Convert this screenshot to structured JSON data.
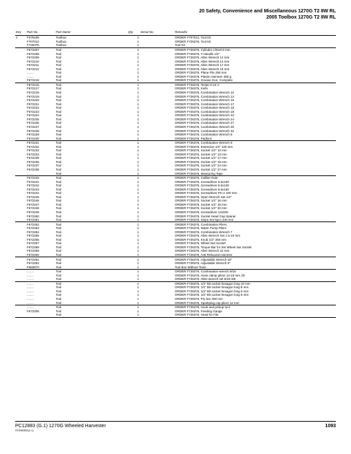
{
  "header": {
    "line1": "20 Safety, Convenience and Miscellaneous 1270G T2 8W RL",
    "line2": "2005 Toolbox 1270G T2 8W RL"
  },
  "columns": {
    "key": "Key",
    "partNo": "Part No.",
    "partName": "Part Name",
    "qty": "Qty.",
    "serialNo": "Serial No.",
    "remarks": "Remarks"
  },
  "rows": [
    {
      "key": "1",
      "pn": "F075435",
      "name": "Toolbox",
      "qty": "1",
      "rem": "ORDER F707012, Tool Kit"
    },
    {
      "pn": "F707012",
      "name": "Toolbox",
      "qty": "1",
      "rem": "ORDER F726376, Tool Kit"
    },
    {
      "pn": "F726376",
      "name": "Toolbox",
      "qty": "1",
      "rem": "Tool Kit",
      "u": true
    },
    {
      "pn": "F672207",
      "name": "Tool",
      "qty": "1",
      "rem": "ORDER F726376, Cylinder Chisel 8 mm"
    },
    {
      "pn": "F672208",
      "name": "Tool",
      "qty": "1",
      "rem": "ORDER F726376, T-Handle 1/2\""
    },
    {
      "pn": "F672209",
      "name": "Tool",
      "qty": "1",
      "rem": "ORDER F726376, Allen Wrench 12 mm"
    },
    {
      "pn": "F672210",
      "name": "Tool",
      "qty": "1",
      "rem": "ORDER F726376, Allen Wrench 14 mm"
    },
    {
      "pn": "F672211",
      "name": "Tool",
      "qty": "1",
      "rem": "ORDER F726376, Allen Wrench 17 mm"
    },
    {
      "pn": "F672212",
      "name": "Tool",
      "qty": "1",
      "rem": "ORDER F726376, Allen Wrench 19 mm"
    },
    {
      "pn": "........",
      "name": "Tool",
      "qty": "1",
      "rem": "ORDER F726376, Plane File 250 mm"
    },
    {
      "pn": "........",
      "name": "Tool",
      "qty": "1",
      "rem": "ORDER F726376, Plastic Hammer 450 g"
    },
    {
      "pn": "F672215",
      "name": "Tool",
      "qty": "1",
      "rem": "ORDER F726376, Grease Gun, Complete",
      "u": true
    },
    {
      "pn": "F672216",
      "name": "Tool",
      "qty": "1",
      "rem": "ORDER F726376, Tester 6-24 V"
    },
    {
      "pn": "F672217",
      "name": "Tool",
      "qty": "1",
      "rem": "ORDER F726376, Knife"
    },
    {
      "pn": "F672218",
      "name": "Tool",
      "qty": "1",
      "rem": "ORDER F726376, Combination Wrench 12"
    },
    {
      "pn": "F672219",
      "name": "Tool",
      "qty": "1",
      "rem": "ORDER F726376, Combination Wrench 13"
    },
    {
      "pn": "F672220",
      "name": "Tool",
      "qty": "1",
      "rem": "ORDER F726376, Combination Wrench 16"
    },
    {
      "pn": "F672221",
      "name": "Tool",
      "qty": "1",
      "rem": "ORDER F726376, Combination Wrench 17"
    },
    {
      "pn": "F672222",
      "name": "Tool",
      "qty": "1",
      "rem": "ORDER F726376, Combination Wrench 18"
    },
    {
      "pn": "F672223",
      "name": "Tool",
      "qty": "1",
      "rem": "ORDER F726376, Combination Wrench 19"
    },
    {
      "pn": "F672224",
      "name": "Tool",
      "qty": "1",
      "rem": "ORDER F726376, Combination Wrench 22"
    },
    {
      "pn": "F672225",
      "name": "Tool",
      "qty": "1",
      "rem": "ORDER F726376, Combination Wrench 24"
    },
    {
      "pn": "F672226",
      "name": "Tool",
      "qty": "1",
      "rem": "ORDER F726376, Combination Wrench 27"
    },
    {
      "pn": "F672227",
      "name": "Tool",
      "qty": "1",
      "rem": "ORDER F726376, Combination Wrench 30"
    },
    {
      "pn": "F672228",
      "name": "Tool",
      "qty": "1",
      "rem": "ORDER F726376, Combination Wrench 32"
    },
    {
      "pn": "F672229",
      "name": "Tool",
      "qty": "1",
      "rem": "ORDER F726376, Combination Wrench 8"
    },
    {
      "pn": "F672230",
      "name": "Tool",
      "qty": "1",
      "rem": "ORDER F726376, Padlock",
      "u": true
    },
    {
      "pn": "F672231",
      "name": "Tool",
      "qty": "1",
      "rem": "ORDER F726376, Combination Wrench 9"
    },
    {
      "pn": "F672232",
      "name": "Tool",
      "qty": "1",
      "rem": "ORDER F726376, Extension 1/2\" 125 mm"
    },
    {
      "pn": "F672233",
      "name": "Tool",
      "qty": "1",
      "rem": "ORDER F726376, Socket 1/2\" 10 mm"
    },
    {
      "pn": "F672234",
      "name": "Tool",
      "qty": "1",
      "rem": "ORDER F726376, Socket 1/2\" 13 mm"
    },
    {
      "pn": "F672235",
      "name": "Tool",
      "qty": "1",
      "rem": "ORDER F726376, Socket 1/2\" 17 mm"
    },
    {
      "pn": "F672236",
      "name": "Tool",
      "qty": "1",
      "rem": "ORDER F726376, Socket 1/2\" 19 mm"
    },
    {
      "pn": "F672237",
      "name": "Tool",
      "qty": "1",
      "rem": "ORDER F726376, Socket 1/2\" 24 mm"
    },
    {
      "pn": "F672238",
      "name": "Tool",
      "qty": "1",
      "rem": "ORDER F726376, Socket 1/2\" 27 mm"
    },
    {
      "pn": "........",
      "name": "Tool",
      "qty": "1",
      "rem": "ORDER F726376, Measuring Tape",
      "u": true
    },
    {
      "pn": "F672240",
      "name": "Tool",
      "qty": "1",
      "rem": "ORDER F726376, Caliber Rule"
    },
    {
      "pn": "F672241",
      "name": "Tool",
      "qty": "1",
      "rem": "ORDER F726376, Screwdriver 5.5x100"
    },
    {
      "pn": "F672242",
      "name": "Tool",
      "qty": "1",
      "rem": "ORDER F726376, Screwdriver 5.5x125"
    },
    {
      "pn": "F672243",
      "name": "Tool",
      "qty": "1",
      "rem": "ORDER F726376, Screwdriver 6.5x150"
    },
    {
      "pn": "F672244",
      "name": "Tool",
      "qty": "1",
      "rem": "ORDER F726376, Screwdriver PH 2 100 mm"
    },
    {
      "pn": "F672245",
      "name": "Tool",
      "qty": "1",
      "rem": "ORDER F726376, Open Wrench Set 1/2\""
    },
    {
      "pn": "F672246",
      "name": "Tool",
      "qty": "1",
      "rem": "ORDER F726376, Socket 1/2\" 16 mm"
    },
    {
      "pn": "F672247",
      "name": "Tool",
      "qty": "1",
      "rem": "ORDER F726376, Socket 1/2\" 18 mm"
    },
    {
      "pn": "F672248",
      "name": "Tool",
      "qty": "1",
      "rem": "ORDER F726376, Socket 1/2\" 30 mm"
    },
    {
      "pn": "F672249",
      "name": "Tool",
      "qty": "1",
      "rem": "ORDER F726376, Screwdriver 12x200"
    },
    {
      "pn": "F672250",
      "name": "Tool",
      "qty": "1",
      "rem": "ORDER F726376, Socket Head Cap Spaner"
    },
    {
      "pn": "F672251",
      "name": "Tool",
      "qty": "1",
      "rem": "ORDER F726376, Snips Set 5pcs 430 mm",
      "u": true
    },
    {
      "pn": "F672252",
      "name": "Tool",
      "qty": "1",
      "rem": "ORDER F726376, Combination Pliers"
    },
    {
      "pn": "F672253",
      "name": "Tool",
      "qty": "1",
      "rem": "ORDER F726376, Water Pump Pliers"
    },
    {
      "pn": "F672254",
      "name": "Tool",
      "qty": "1",
      "rem": "ORDER F726376, Combination Wrench 7"
    },
    {
      "pn": "F672255",
      "name": "Tool",
      "qty": "1",
      "rem": "ORDER F726376, Allen Wrench Set 1.5-10 mm"
    },
    {
      "pn": "F672256",
      "name": "Tool",
      "qty": "1",
      "rem": "ORDER F726376, Knob 1/2\" 250 mm"
    },
    {
      "pn": "F672257",
      "name": "Tool",
      "qty": "1",
      "rem": "ORDER F726376, Wheel Nut Socket"
    },
    {
      "pn": "F672258",
      "name": "Tool",
      "qty": "1",
      "rem": "ORDER F726376, Torque Bar for Set Wheel Nut Socket"
    },
    {
      "pn": "F672259",
      "name": "Tool",
      "qty": "1",
      "rem": "ORDER F726376, Allen Wrench 22 mm"
    },
    {
      "pn": "F672260",
      "name": "Tool",
      "qty": "1",
      "rem": "ORDER F726376, Anti-Rebound Hammer",
      "u": true
    },
    {
      "pn": "F672261",
      "name": "Tool",
      "qty": "1",
      "rem": "ORDER F726376, Adjustable Wrench 15\""
    },
    {
      "pn": "F672262",
      "name": "Tool",
      "qty": "1",
      "rem": "ORDER F726376, Adjustable Wrench 8\""
    },
    {
      "pn": "F683870",
      "name": "Tool",
      "qty": "1",
      "rem": "Tool Box Without Tools",
      "u": true
    },
    {
      "pn": "........",
      "name": "Tool",
      "qty": "1",
      "rem": "ORDER F726376, Combination wrench 9/16"
    },
    {
      "pn": "........",
      "name": "Tool",
      "qty": "1",
      "rem": "ORDER F726376, Hose clamp pliers 13-19 mm JD"
    },
    {
      "pn": "........",
      "name": "Tool",
      "qty": "1",
      "rem": "ORDER F726376, Allen wrench set 5/16-3/8",
      "u": true
    },
    {
      "pn": "........",
      "name": "Tool",
      "qty": "1",
      "rem": "ORDER F726376, 1/2\" Bit socket hexagon long 10 mm"
    },
    {
      "pn": "........",
      "name": "Tool",
      "qty": "1",
      "rem": "ORDER F726376, 1/2\" Bit socket hexagon long 8 mm"
    },
    {
      "pn": "........",
      "name": "Tool",
      "qty": "1",
      "rem": "ORDER F726376, 1/2\" Bit socket hexagon long 6 mm"
    },
    {
      "pn": "........",
      "name": "Tool",
      "qty": "1",
      "rem": "ORDER F726376, 1/2\" Bit socket hexagon long 5 mm"
    },
    {
      "pn": "........",
      "name": "Tool",
      "qty": "1",
      "rem": "ORDER F726376, Pry bar 400 mm"
    },
    {
      "pn": "........",
      "name": "Tool",
      "qty": "1",
      "rem": "ORDER F726376, Sparkplug cap pliers 12 mm",
      "u": true
    },
    {
      "pn": "........",
      "name": "Tool",
      "qty": "1",
      "rem": "ORDER F726376, Hook and pickup tool"
    },
    {
      "pn": "F672205",
      "name": "Tool",
      "qty": "1",
      "rem": "ORDER F726376, Feeding Gauge"
    },
    {
      "pn": "",
      "name": "Tool",
      "qty": "1",
      "rem": "ORDER F726376, Head for File",
      "u": true
    }
  ],
  "footer": {
    "left1": "PC12883  (G.1)    1270G Wheeled Harvester",
    "left2": "ST696352(2.1)",
    "page": "1093"
  }
}
